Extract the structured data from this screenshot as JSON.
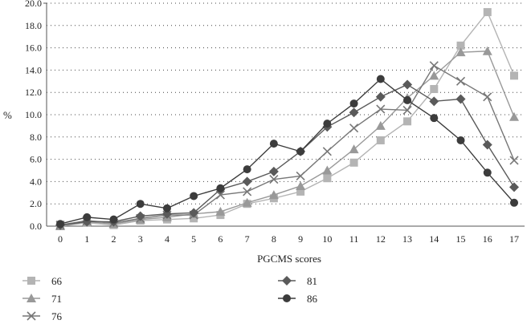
{
  "chart_data": {
    "type": "line",
    "xlabel": "PGCMS scores",
    "ylabel": "%",
    "x": [
      0,
      1,
      2,
      3,
      4,
      5,
      6,
      7,
      8,
      9,
      10,
      11,
      12,
      13,
      14,
      15,
      16,
      17
    ],
    "xlim": [
      0,
      17
    ],
    "ylim": [
      0,
      20
    ],
    "yticks": [
      "0.0",
      "2.0",
      "4.0",
      "6.0",
      "8.0",
      "10.0",
      "12.0",
      "14.0",
      "16.0",
      "18.0",
      "20.0"
    ],
    "grid": "horizontal dotted",
    "legend_position": "bottom",
    "series": [
      {
        "name": "66",
        "marker": "square",
        "color": "#b4b4b4",
        "values": [
          0.0,
          0.3,
          0.1,
          0.5,
          0.6,
          0.7,
          1.0,
          2.0,
          2.5,
          3.1,
          4.3,
          5.7,
          7.7,
          9.4,
          12.3,
          16.2,
          19.2,
          13.5
        ]
      },
      {
        "name": "71",
        "marker": "triangle",
        "color": "#999999",
        "values": [
          0.0,
          0.4,
          0.2,
          0.6,
          0.8,
          1.1,
          1.3,
          2.1,
          2.8,
          3.6,
          5.0,
          6.9,
          9.0,
          11.5,
          13.5,
          15.6,
          15.7,
          9.8
        ]
      },
      {
        "name": "76",
        "marker": "x",
        "color": "#777777",
        "values": [
          0.1,
          0.5,
          0.3,
          0.7,
          1.0,
          1.0,
          2.8,
          3.1,
          4.2,
          4.5,
          6.7,
          8.8,
          10.5,
          10.4,
          14.4,
          13.0,
          11.6,
          5.9
        ]
      },
      {
        "name": "81",
        "marker": "diamond",
        "color": "#5a5a5a",
        "values": [
          0.1,
          0.4,
          0.4,
          0.9,
          1.1,
          1.2,
          3.3,
          4.0,
          4.9,
          6.7,
          8.9,
          10.2,
          11.6,
          12.7,
          11.2,
          11.4,
          7.3,
          3.5
        ]
      },
      {
        "name": "86",
        "marker": "circle",
        "color": "#3c3c3c",
        "values": [
          0.2,
          0.8,
          0.6,
          2.0,
          1.6,
          2.7,
          3.4,
          5.1,
          7.4,
          6.7,
          9.2,
          11.0,
          13.2,
          11.3,
          9.7,
          7.7,
          4.8,
          2.1
        ]
      }
    ]
  }
}
